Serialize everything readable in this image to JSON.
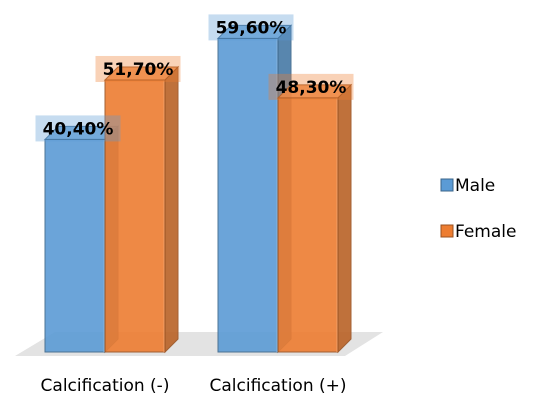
{
  "chart_data": {
    "type": "bar",
    "categories": [
      "Calcification (-)",
      "Calcification (+)"
    ],
    "series": [
      {
        "name": "Male",
        "values": [
          40.4,
          59.6
        ],
        "labels": [
          "40,40%",
          "59,60%"
        ],
        "color": "#5b9bd5"
      },
      {
        "name": "Female",
        "values": [
          51.7,
          48.3
        ],
        "labels": [
          "51,70%",
          "48,30%"
        ],
        "color": "#ed7d31"
      }
    ],
    "title": "",
    "xlabel": "",
    "ylabel": "",
    "ylim": [
      0,
      65
    ],
    "grid": false,
    "legend_position": "right",
    "style": "3d-clustered-column"
  }
}
